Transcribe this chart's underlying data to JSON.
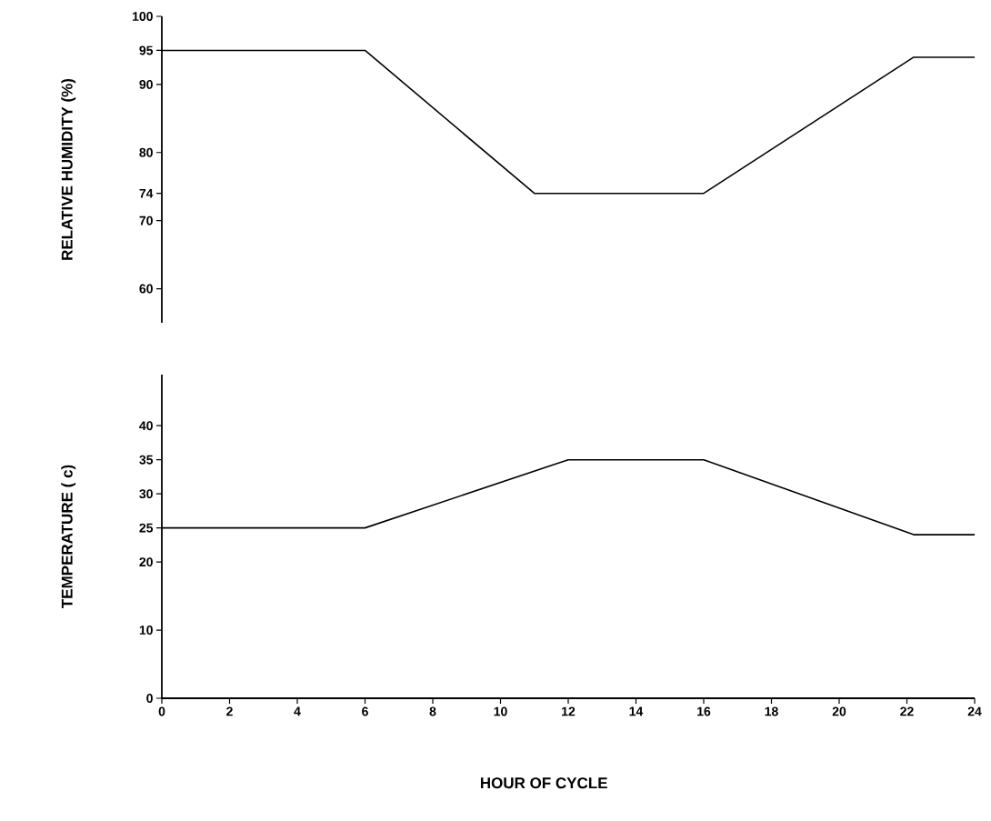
{
  "chart_data": [
    {
      "type": "line",
      "ylabel": "RELATIVE HUMIDITY (%)",
      "xlim": [
        0,
        24
      ],
      "xticks": [
        0,
        2,
        4,
        6,
        8,
        10,
        12,
        14,
        16,
        18,
        20,
        22,
        24
      ],
      "ylim": [
        55,
        100
      ],
      "yticks": [
        60,
        70,
        74,
        80,
        90,
        95,
        100
      ],
      "tick_labels": "y",
      "series": [
        {
          "color": "#000000",
          "x": [
            0,
            6,
            11,
            16,
            22.2,
            24
          ],
          "values": [
            95,
            95,
            74,
            74,
            94,
            94
          ]
        }
      ]
    },
    {
      "type": "line",
      "xlabel": "HOUR OF CYCLE",
      "ylabel": "TEMPERATURE ( c)",
      "xlim": [
        0,
        24
      ],
      "xticks": [
        0,
        2,
        4,
        6,
        8,
        10,
        12,
        14,
        16,
        18,
        20,
        22,
        24
      ],
      "ylim": [
        0,
        47.5
      ],
      "yticks": [
        0,
        10,
        20,
        25,
        30,
        35,
        40
      ],
      "series": [
        {
          "color": "#000000",
          "x": [
            0,
            6,
            12,
            16,
            22.2,
            24
          ],
          "values": [
            25,
            25,
            35,
            35,
            24,
            24
          ]
        }
      ]
    }
  ]
}
